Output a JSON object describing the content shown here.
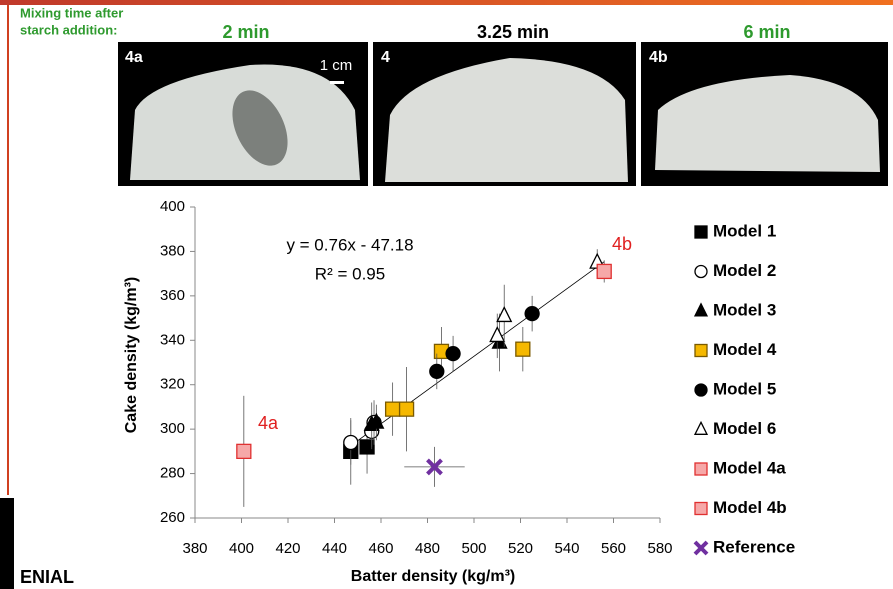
{
  "header": {
    "mixing_label_1": "Mixing time after",
    "mixing_label_2": "starch addition:",
    "times": [
      "2 min",
      "3.25 min",
      "6 min"
    ],
    "photo_labels": [
      "4a",
      "4",
      "4b"
    ],
    "scale_label": "1 cm"
  },
  "logo_text": "ENIAL",
  "chart_data": {
    "type": "scatter",
    "x_label": "Batter density (kg/m³)",
    "y_label": "Cake density (kg/m³)",
    "xlim": [
      380,
      580
    ],
    "xticks": [
      380,
      400,
      420,
      440,
      460,
      480,
      500,
      520,
      540,
      560,
      580
    ],
    "ylim": [
      260,
      400
    ],
    "yticks": [
      260,
      280,
      300,
      320,
      340,
      360,
      380,
      400
    ],
    "grid": false,
    "trendline": {
      "slope": 0.76,
      "intercept": -47.18,
      "x": [
        445,
        556
      ],
      "equation": "y = 0.76x - 47.18",
      "r2": "R² = 0.95"
    },
    "annotations": [
      "4a",
      "4b"
    ],
    "series": [
      {
        "name": "Model 1",
        "marker": "square",
        "color": "#000000",
        "fill": "#000000",
        "x": [
          447,
          454
        ],
        "values": [
          290,
          292
        ],
        "yerr": [
          15,
          12
        ]
      },
      {
        "name": "Model 2",
        "marker": "circle",
        "color": "#000000",
        "fill": "#ffffff",
        "x": [
          447,
          456,
          457
        ],
        "values": [
          294,
          299,
          303
        ],
        "yerr": [
          10,
          8,
          10
        ]
      },
      {
        "name": "Model 3",
        "marker": "triangle",
        "color": "#000000",
        "fill": "#000000",
        "x": [
          456,
          458,
          511
        ],
        "values": [
          302,
          303,
          339
        ],
        "yerr": [
          10,
          8,
          13
        ]
      },
      {
        "name": "Model 4",
        "marker": "square",
        "color": "#7a5a00",
        "fill": "#f5b800",
        "x": [
          465,
          471,
          486,
          521
        ],
        "values": [
          309,
          309,
          335,
          336
        ],
        "yerr": [
          12,
          19,
          11,
          10
        ]
      },
      {
        "name": "Model 5",
        "marker": "circle",
        "color": "#000000",
        "fill": "#000000",
        "x": [
          484,
          491,
          525
        ],
        "values": [
          326,
          334,
          352
        ],
        "yerr": [
          8,
          8,
          8
        ]
      },
      {
        "name": "Model 6",
        "marker": "triangle",
        "color": "#000000",
        "fill": "#ffffff",
        "x": [
          510,
          513,
          553
        ],
        "values": [
          342,
          351,
          375
        ],
        "yerr": [
          10,
          14,
          6
        ]
      },
      {
        "name": "Model 4a",
        "marker": "square",
        "color": "#e03030",
        "fill": "#f6a8a8",
        "x": [
          401
        ],
        "values": [
          290
        ],
        "yerr": [
          25
        ]
      },
      {
        "name": "Model 4b",
        "marker": "square",
        "color": "#e03030",
        "fill": "#f6a8a8",
        "x": [
          556
        ],
        "values": [
          371
        ],
        "yerr": [
          5
        ]
      },
      {
        "name": "Reference",
        "marker": "x",
        "color": "#7030a0",
        "fill": "#7030a0",
        "x": [
          483
        ],
        "values": [
          283
        ],
        "yerr": [
          9
        ],
        "xerr": [
          13
        ]
      }
    ]
  }
}
